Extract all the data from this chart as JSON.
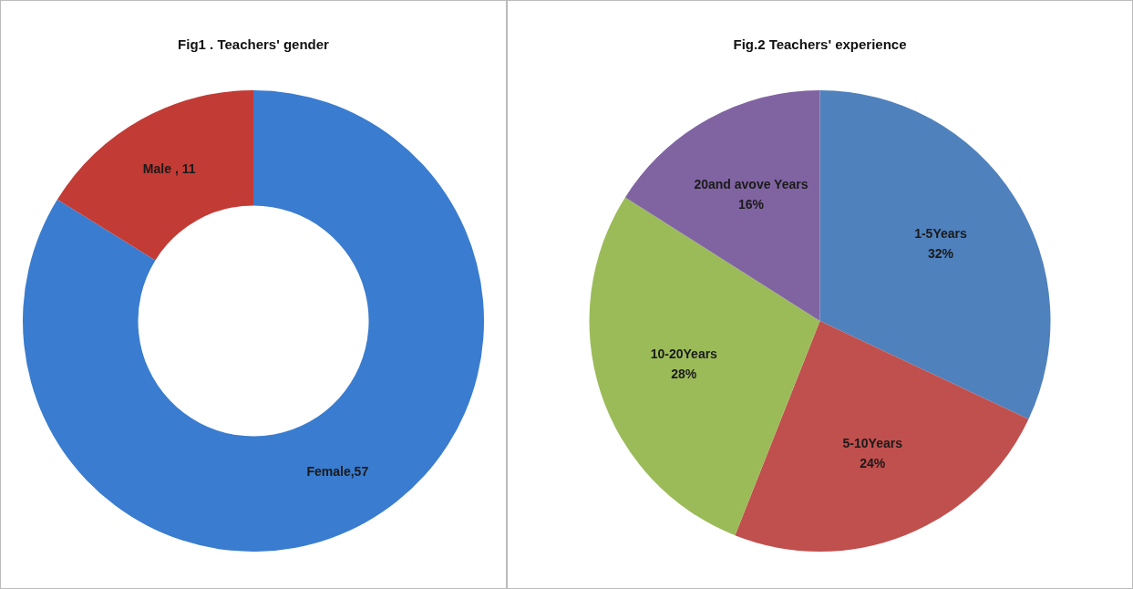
{
  "chart_data": [
    {
      "type": "donut",
      "title": "Fig1 . Teachers' gender",
      "categories": [
        "Female",
        "Male "
      ],
      "values": [
        57,
        11
      ],
      "colors": [
        "#3a7ccf",
        "#c23b35"
      ],
      "value_labels": [
        "57",
        " 11"
      ],
      "legend": false
    },
    {
      "type": "pie",
      "title": "Fig.2 Teachers' experience",
      "categories": [
        "1-5Years",
        "5-10Years",
        "10-20Years",
        "20and avove Years"
      ],
      "values": [
        32,
        24,
        28,
        16
      ],
      "colors": [
        "#4f81bd",
        "#c0504d",
        "#9bbb59",
        "#8064a2"
      ],
      "value_labels": [
        "32%",
        "24%",
        "28%",
        "16%"
      ],
      "legend": false
    }
  ]
}
